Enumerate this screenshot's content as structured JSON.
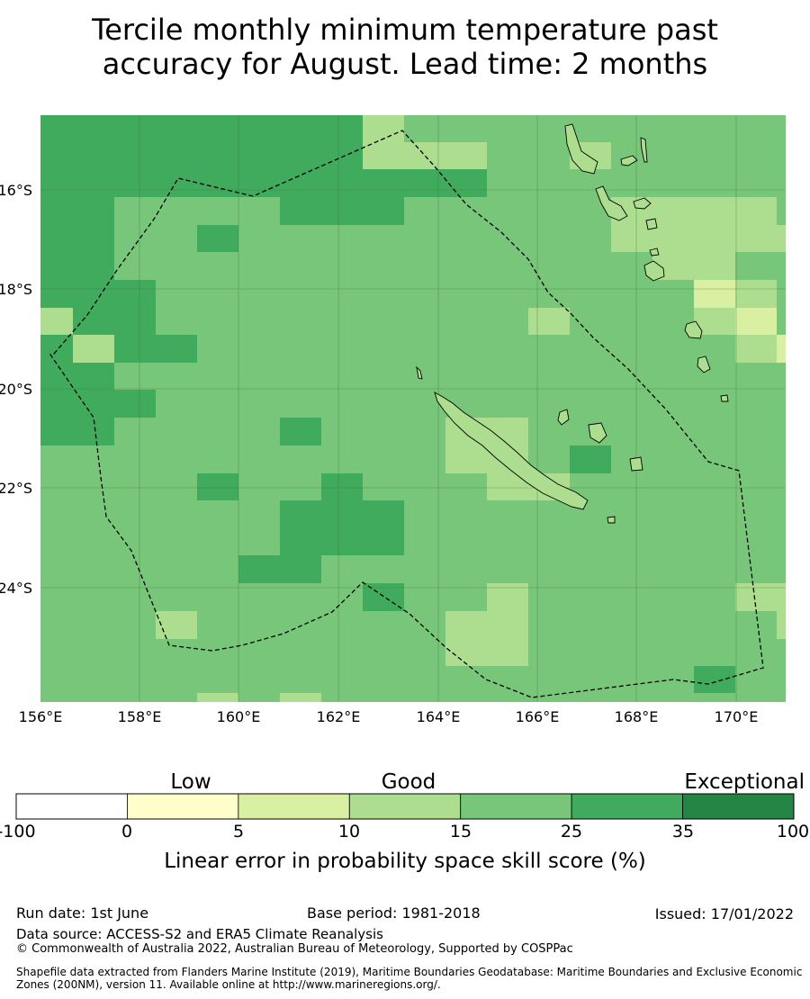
{
  "title_line1": "Tercile monthly minimum temperature past",
  "title_line2": "accuracy for August. Lead time: 2 months",
  "map": {
    "lat_labels": [
      "16°S",
      "18°S",
      "20°S",
      "22°S",
      "24°S"
    ],
    "lon_labels": [
      "156°E",
      "158°E",
      "160°E",
      "162°E",
      "164°E",
      "166°E",
      "168°E",
      "170°E"
    ],
    "colors": {
      "c5_10": "#d9f0a3",
      "c10_15": "#addd8e",
      "c15_25": "#78c679",
      "c25_35": "#41ab5d",
      "c0_5": "#ffffcc"
    }
  },
  "colorbar": {
    "categories": [
      "Low",
      "Good",
      "Exceptional"
    ],
    "ticks": [
      "-100",
      "0",
      "5",
      "10",
      "15",
      "25",
      "35",
      "100"
    ],
    "colors": [
      "#ffffff",
      "#ffffcc",
      "#d9f0a3",
      "#addd8e",
      "#78c679",
      "#41ab5d",
      "#238443"
    ],
    "label": "Linear error in probability space skill score (%)"
  },
  "footer": {
    "run_date": "Run date: 1st June",
    "base_period": "Base period: 1981-2018",
    "issued": "Issued: 17/01/2022",
    "data_source": "Data source: ACCESS-S2 and ERA5 Climate Reanalysis",
    "copyright": "© Commonwealth of Australia 2022, Australian Bureau of Meteorology, Supported by COSPPac",
    "shapefile": "Shapefile data extracted from Flanders Marine Institute (2019), Maritime Boundaries Geodatabase: Maritime Boundaries and Exclusive Economic Zones (200NM), version 11. Available online at http://www.marineregions.org/."
  }
}
